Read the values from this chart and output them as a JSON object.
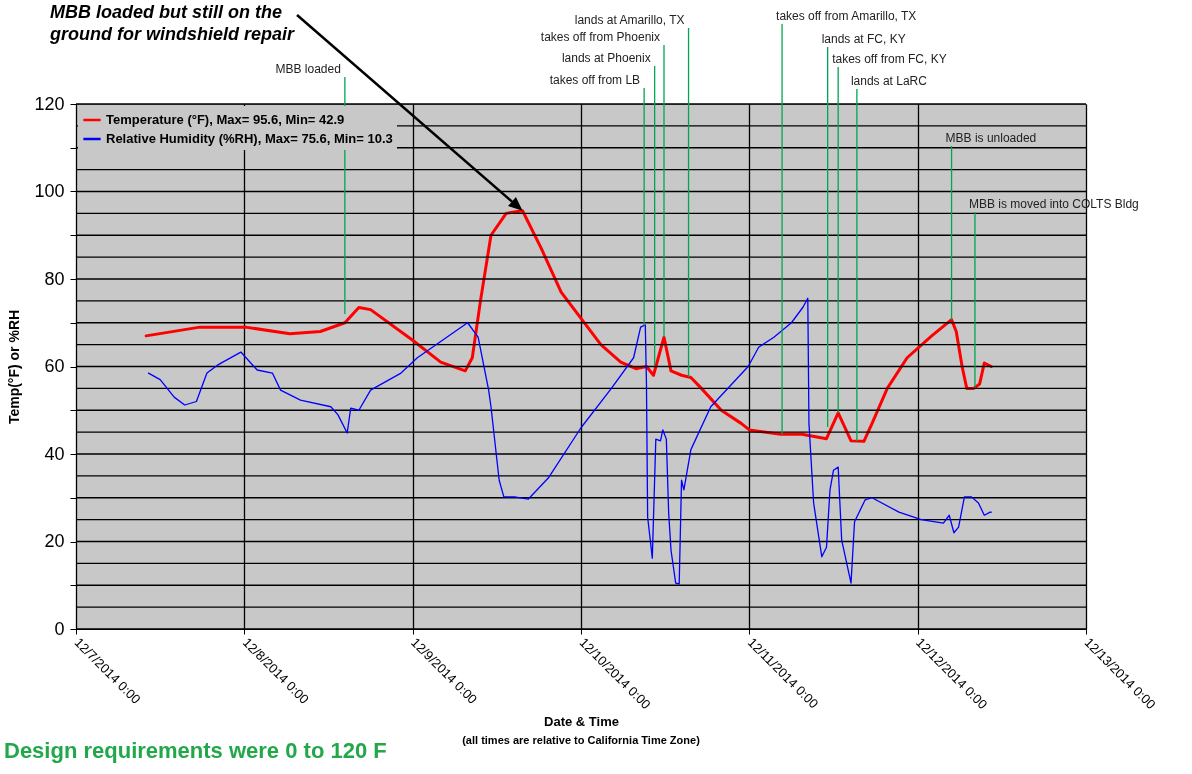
{
  "chart_data": {
    "type": "line",
    "xlabel": "Date & Time",
    "ylabel": "Temp(°F) or %RH",
    "xlim": [
      "2014-12-07",
      "2014-12-13"
    ],
    "xticks": [
      {
        "value": "2014-12-07",
        "label": "12/7/2014 0:00"
      },
      {
        "value": "2014-12-08",
        "label": "12/8/2014 0:00"
      },
      {
        "value": "2014-12-09",
        "label": "12/9/2014 0:00"
      },
      {
        "value": "2014-12-10",
        "label": "12/10/2014 0:00"
      },
      {
        "value": "2014-12-11",
        "label": "12/11/2014 0:00"
      },
      {
        "value": "2014-12-12",
        "label": "12/12/2014 0:00"
      },
      {
        "value": "2014-12-13",
        "label": "12/13/2014 0:00"
      }
    ],
    "ylim": [
      0,
      120
    ],
    "yticks": [
      0,
      {
        "value": 5,
        "label": null
      },
      {
        "value": 10,
        "label": null
      },
      {
        "value": 15,
        "label": null
      },
      20,
      {
        "value": 25,
        "label": null
      },
      {
        "value": 30,
        "label": null
      },
      {
        "value": 35,
        "label": null
      },
      40,
      {
        "value": 45,
        "label": null
      },
      {
        "value": 50,
        "label": null
      },
      {
        "value": 55,
        "label": null
      },
      60,
      {
        "value": 65,
        "label": null
      },
      {
        "value": 70,
        "label": null
      },
      {
        "value": 75,
        "label": null
      },
      80,
      {
        "value": 85,
        "label": null
      },
      {
        "value": 90,
        "label": null
      },
      {
        "value": 95,
        "label": null
      },
      100,
      {
        "value": 105,
        "label": null
      },
      {
        "value": 110,
        "label": null
      },
      {
        "value": 115,
        "label": null
      },
      120
    ],
    "grid": true,
    "legend": "top left",
    "series": [
      {
        "name": "Temperature (°F), Max= 95.6, Min= 42.9",
        "color": "#ff0000",
        "x": [
          "2014-12-07T10:00",
          "2014-12-07T17:40",
          "2014-12-08T00:10",
          "2014-12-08T06:30",
          "2014-12-08T10:50",
          "2014-12-08T14:20",
          "2014-12-08T16:20",
          "2014-12-08T18:00",
          "2014-12-09T00:00",
          "2014-12-09T04:00",
          "2014-12-09T07:30",
          "2014-12-09T08:30",
          "2014-12-09T09:40",
          "2014-12-09T11:10",
          "2014-12-09T13:20",
          "2014-12-09T15:40",
          "2014-12-09T18:20",
          "2014-12-09T21:10",
          "2014-12-10T00:00",
          "2014-12-10T02:50",
          "2014-12-10T05:40",
          "2014-12-10T07:50",
          "2014-12-10T09:20",
          "2014-12-10T10:20",
          "2014-12-10T11:50",
          "2014-12-10T12:50",
          "2014-12-10T14:20",
          "2014-12-10T15:40",
          "2014-12-10T17:10",
          "2014-12-10T20:00",
          "2014-12-10T22:50",
          "2014-12-11T00:00",
          "2014-12-11T04:30",
          "2014-12-11T07:30",
          "2014-12-11T11:00",
          "2014-12-11T12:40",
          "2014-12-11T14:30",
          "2014-12-11T16:20",
          "2014-12-11T17:30",
          "2014-12-11T19:40",
          "2014-12-11T22:30",
          "2014-12-12T02:00",
          "2014-12-12T04:50",
          "2014-12-12T05:30",
          "2014-12-12T06:20",
          "2014-12-12T07:00",
          "2014-12-12T08:00",
          "2014-12-12T08:50",
          "2014-12-12T09:30",
          "2014-12-12T10:30"
        ],
        "values": [
          67,
          69,
          69,
          67.5,
          68,
          70,
          73.5,
          73,
          66,
          61,
          59,
          62,
          75,
          90,
          95,
          95.6,
          87,
          77,
          71,
          65,
          61,
          59.5,
          60,
          58,
          66.7,
          59,
          58,
          57.5,
          55,
          50,
          47,
          45.5,
          44.5,
          44.5,
          43.5,
          49.4,
          43,
          42.9,
          47,
          55,
          62,
          67,
          70.7,
          68,
          60,
          55,
          55,
          56,
          60.8,
          60
        ]
      },
      {
        "name": "Relative Humidity (%RH), Max= 75.6, Min= 10.3",
        "color": "#0000ff",
        "x": [
          "2014-12-07T10:20",
          "2014-12-07T12:00",
          "2014-12-07T14:00",
          "2014-12-07T15:30",
          "2014-12-07T17:10",
          "2014-12-07T18:40",
          "2014-12-07T20:10",
          "2014-12-07T23:30",
          "2014-12-08T01:50",
          "2014-12-08T04:00",
          "2014-12-08T05:10",
          "2014-12-08T08:00",
          "2014-12-08T12:20",
          "2014-12-08T13:20",
          "2014-12-08T14:40",
          "2014-12-08T15:10",
          "2014-12-08T16:20",
          "2014-12-08T18:00",
          "2014-12-08T22:20",
          "2014-12-09T00:40",
          "2014-12-09T07:50",
          "2014-12-09T09:20",
          "2014-12-09T10:50",
          "2014-12-09T11:10",
          "2014-12-09T12:20",
          "2014-12-09T13:00",
          "2014-12-09T14:30",
          "2014-12-09T16:30",
          "2014-12-09T19:20",
          "2014-12-10T00:00",
          "2014-12-10T04:20",
          "2014-12-10T07:30",
          "2014-12-10T08:30",
          "2014-12-10T09:10",
          "2014-12-10T09:20",
          "2014-12-10T09:30",
          "2014-12-10T10:10",
          "2014-12-10T10:40",
          "2014-12-10T11:20",
          "2014-12-10T11:40",
          "2014-12-10T12:10",
          "2014-12-10T12:30",
          "2014-12-10T12:50",
          "2014-12-10T13:30",
          "2014-12-10T14:00",
          "2014-12-10T14:20",
          "2014-12-10T14:40",
          "2014-12-10T15:40",
          "2014-12-10T18:30",
          "2014-12-10T23:50",
          "2014-12-11T01:20",
          "2014-12-11T03:30",
          "2014-12-11T06:00",
          "2014-12-11T07:40",
          "2014-12-11T08:20",
          "2014-12-11T08:30",
          "2014-12-11T09:10",
          "2014-12-11T10:20",
          "2014-12-11T11:00",
          "2014-12-11T11:30",
          "2014-12-11T12:00",
          "2014-12-11T12:40",
          "2014-12-11T13:10",
          "2014-12-11T14:30",
          "2014-12-11T15:00",
          "2014-12-11T16:30",
          "2014-12-11T17:30",
          "2014-12-11T21:20",
          "2014-12-12T00:30",
          "2014-12-12T03:40",
          "2014-12-12T04:30",
          "2014-12-12T05:10",
          "2014-12-12T05:50",
          "2014-12-12T06:40",
          "2014-12-12T07:40",
          "2014-12-12T08:40",
          "2014-12-12T09:30",
          "2014-12-12T10:20",
          "2014-12-12T10:30"
        ],
        "values": [
          58.5,
          57,
          53,
          51.2,
          52,
          58.5,
          60.3,
          63.3,
          59.2,
          58.5,
          54.6,
          52.3,
          50.8,
          49,
          44.8,
          50.5,
          50,
          54.6,
          58.5,
          62,
          70,
          66.7,
          54.6,
          50.8,
          34,
          30.2,
          30.2,
          29.7,
          34.5,
          46,
          55,
          62,
          69,
          69.5,
          56,
          25.6,
          16.2,
          43.4,
          43,
          45.5,
          43.4,
          26.5,
          18,
          10.5,
          10.3,
          34,
          31.8,
          41,
          50.8,
          60,
          64.4,
          66.7,
          70,
          73.6,
          75.6,
          47,
          28.8,
          16.5,
          18.7,
          31.8,
          36.3,
          37,
          20.3,
          10.5,
          24.5,
          29.5,
          30,
          26.7,
          25,
          24.2,
          26,
          22,
          23.3,
          30.2,
          30.2,
          28.8,
          26,
          26.7,
          26.7
        ]
      }
    ],
    "annotations": [
      "MBB loaded but still on the ground for windshield repair",
      {
        "text": "MBB loaded",
        "x": "2014-12-08T14:20",
        "y": 72
      },
      {
        "text": "takes off from LB",
        "x": "2014-12-10T09:00",
        "y": 69.3
      },
      {
        "text": "lands at Phoenix",
        "x": "2014-12-10T10:30",
        "y": 60.3
      },
      {
        "text": "takes off from Phoenix",
        "x": "2014-12-10T11:50",
        "y": 66.7
      },
      {
        "text": "lands at Amarillo, TX",
        "x": "2014-12-10T15:20",
        "y": 57.6
      },
      {
        "text": "takes off from Amarillo, TX",
        "x": "2014-12-11T04:40",
        "y": 44.5
      },
      {
        "text": "lands at FC, KY",
        "x": "2014-12-11T11:10",
        "y": 46.2
      },
      {
        "text": "takes off from FC, KY",
        "x": "2014-12-11T12:40",
        "y": 49.4
      },
      {
        "text": "lands at LaRC",
        "x": "2014-12-11T15:20",
        "y": 43
      },
      {
        "text": "MBB is unloaded",
        "x": "2014-12-12T04:50",
        "y": 70.7
      },
      {
        "text": "MBB is moved into COLTS Bldg",
        "x": "2014-12-12T08:10",
        "y": 55.2
      },
      "Design requirements were 0 to 120 F",
      "(all times are relative to California Time Zone)"
    ]
  }
}
